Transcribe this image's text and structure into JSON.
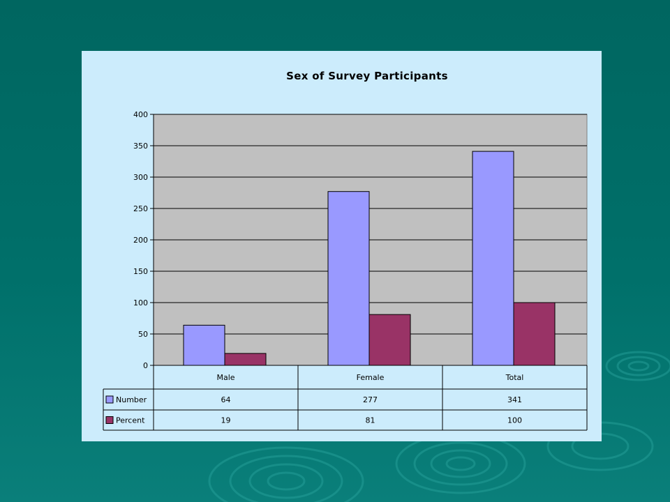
{
  "colors": {
    "background": "#006862",
    "panel": "#ccecfc",
    "plot_area": "#c0c0c0",
    "number_series": "#9999ff",
    "percent_series": "#993366"
  },
  "chart_data": {
    "type": "bar",
    "title": "Sex of Survey Participants",
    "categories": [
      "Male",
      "Female",
      "Total"
    ],
    "series": [
      {
        "name": "Number",
        "values": [
          64,
          277,
          341
        ],
        "color": "#9999ff"
      },
      {
        "name": "Percent",
        "values": [
          19,
          81,
          100
        ],
        "color": "#993366"
      }
    ],
    "ylim": [
      0,
      400
    ],
    "yticks": [
      0,
      50,
      100,
      150,
      200,
      250,
      300,
      350,
      400
    ],
    "grid": true,
    "legend": "data-table",
    "data_table": true
  }
}
